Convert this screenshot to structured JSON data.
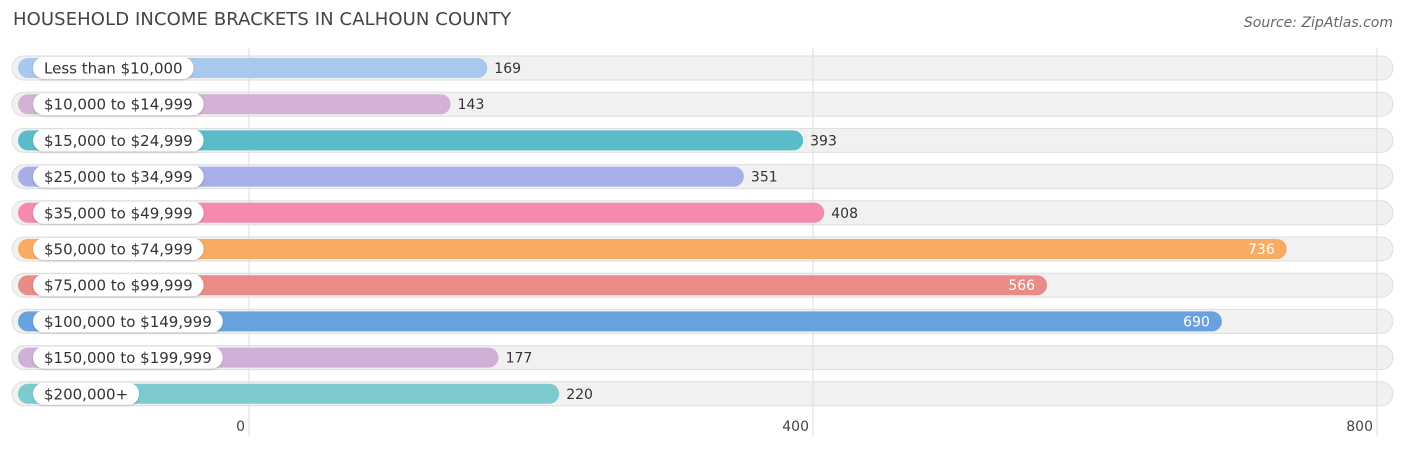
{
  "title": "HOUSEHOLD INCOME BRACKETS IN CALHOUN COUNTY",
  "source": "Source: ZipAtlas.com",
  "chart_data": {
    "type": "bar",
    "orientation": "horizontal",
    "title": "HOUSEHOLD INCOME BRACKETS IN CALHOUN COUNTY",
    "xlabel": "",
    "ylabel": "",
    "xlim": [
      0,
      800
    ],
    "ticks": [
      "0",
      "400",
      "800"
    ],
    "grid": true,
    "categories": [
      "Less than $10,000",
      "$10,000 to $14,999",
      "$15,000 to $24,999",
      "$25,000 to $34,999",
      "$35,000 to $49,999",
      "$50,000 to $74,999",
      "$75,000 to $99,999",
      "$100,000 to $149,999",
      "$150,000 to $199,999",
      "$200,000+"
    ],
    "values": [
      169,
      143,
      393,
      351,
      408,
      736,
      566,
      690,
      177,
      220
    ],
    "colors": [
      "#a9c8ee",
      "#d3b2d6",
      "#5bbcc9",
      "#a7aee8",
      "#f68aac",
      "#f8ab62",
      "#e98b86",
      "#6aa2e0",
      "#cfb0d6",
      "#7ecbcf"
    ]
  }
}
